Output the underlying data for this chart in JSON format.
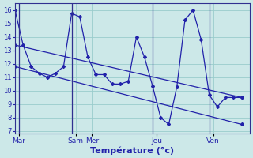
{
  "xlabel": "Température (°c)",
  "background_color": "#cce8e8",
  "line_color": "#2222aa",
  "grid_color": "#99cccc",
  "ylim": [
    6.8,
    16.5
  ],
  "yticks": [
    7,
    8,
    9,
    10,
    11,
    12,
    13,
    14,
    15,
    16
  ],
  "day_labels": [
    "Mar",
    "Sam",
    "Mer",
    "Jeu",
    "Ven"
  ],
  "day_tick_positions": [
    0.5,
    7.5,
    9.5,
    17.5,
    24.5
  ],
  "vline_positions": [
    0.5,
    7.0,
    17.0,
    24.0
  ],
  "xlim": [
    0,
    29
  ],
  "main_x": [
    0,
    1,
    2,
    3,
    4,
    5,
    6,
    7,
    8,
    9,
    10,
    11,
    12,
    13,
    14,
    15,
    16,
    17,
    18,
    19,
    20,
    21,
    22,
    23,
    24,
    25,
    26,
    27,
    28
  ],
  "main_y": [
    16.0,
    13.4,
    11.8,
    11.3,
    11.0,
    11.3,
    11.8,
    15.75,
    15.5,
    12.5,
    11.2,
    11.2,
    10.5,
    10.5,
    10.7,
    14.0,
    12.5,
    10.35,
    8.0,
    7.5,
    10.3,
    15.25,
    16.0,
    13.8,
    9.7,
    8.8,
    9.5,
    9.5,
    9.5
  ],
  "trend1_x": [
    0,
    28
  ],
  "trend1_y": [
    13.4,
    9.5
  ],
  "trend2_x": [
    0,
    28
  ],
  "trend2_y": [
    11.8,
    7.5
  ]
}
